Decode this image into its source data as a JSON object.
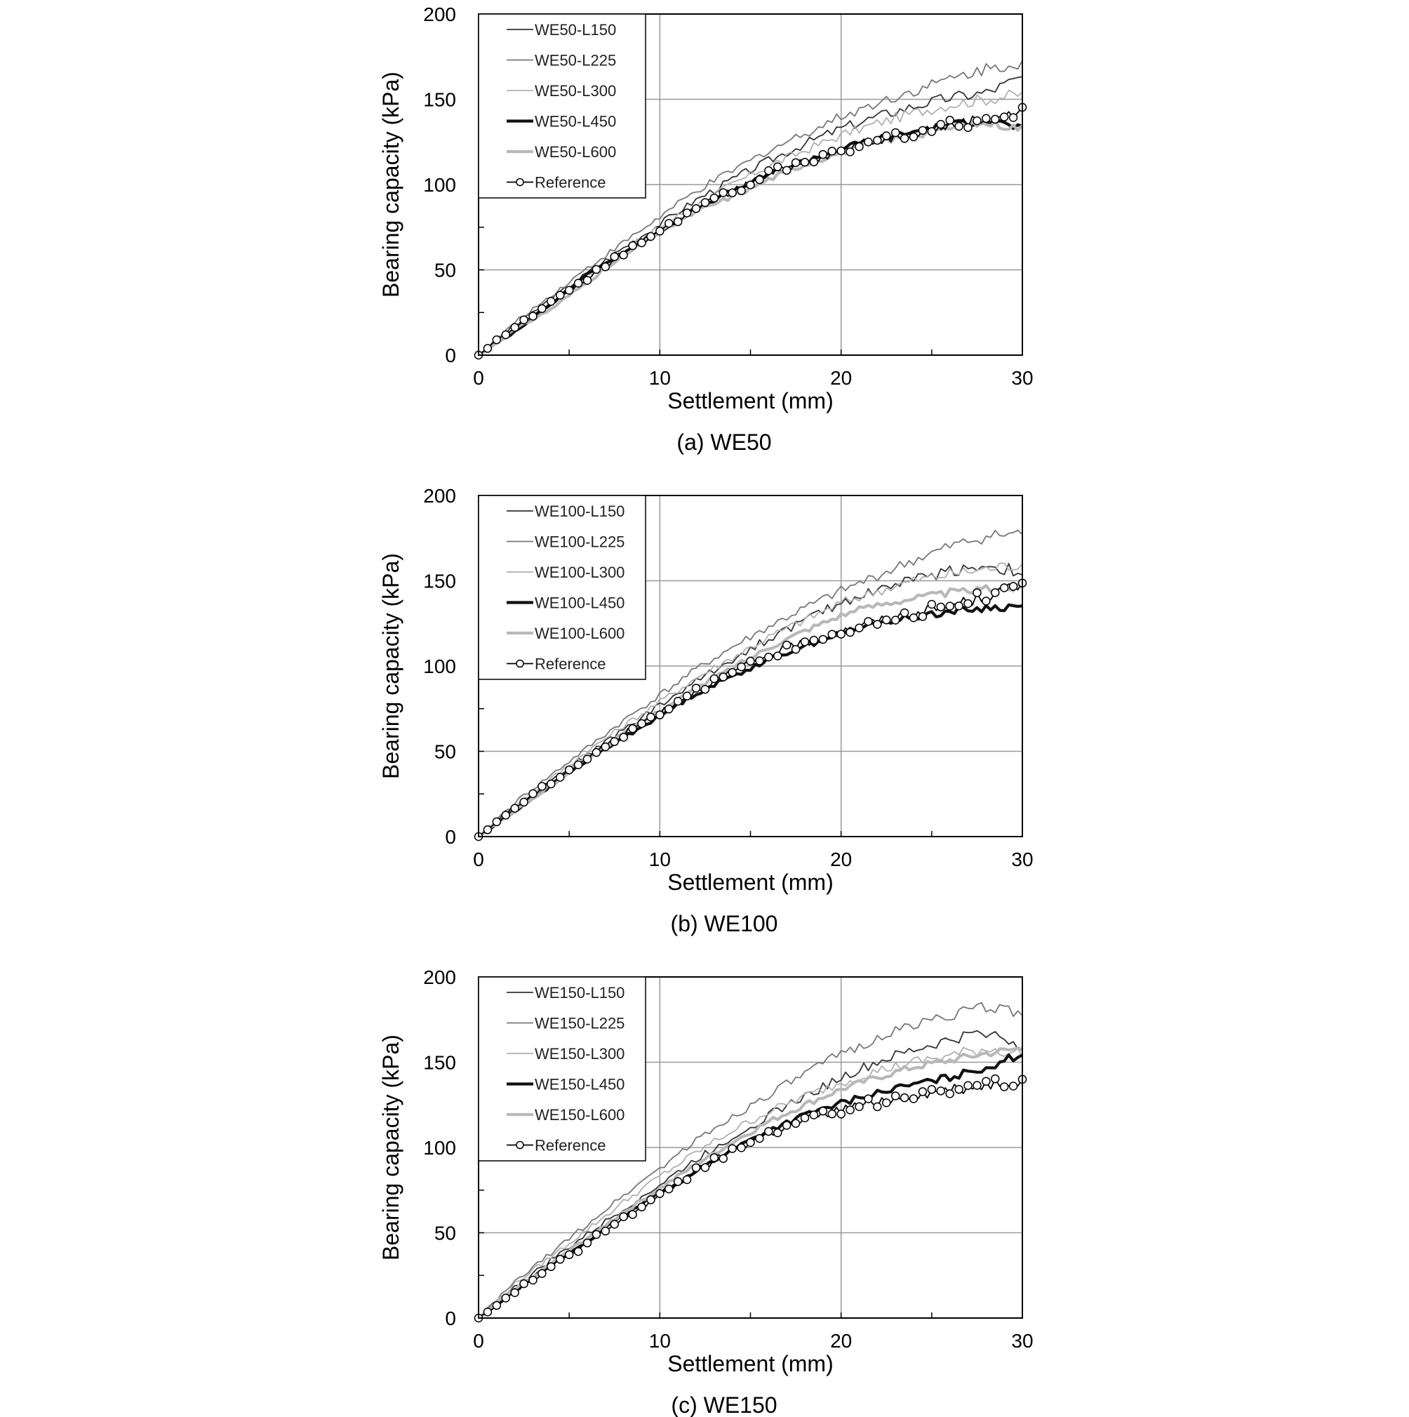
{
  "figure": {
    "panels": [
      {
        "caption": "(a)  WE50"
      },
      {
        "caption": "(b)  WE100"
      },
      {
        "caption": "(c)  WE150"
      }
    ]
  },
  "chart_data": [
    {
      "type": "line",
      "caption": "(a)  WE50",
      "xlabel": "Settlement (mm)",
      "ylabel": "Bearing capacity (kPa)",
      "xlim": [
        0,
        30
      ],
      "ylim": [
        0,
        200
      ],
      "xticks": [
        0,
        10,
        20,
        30
      ],
      "yticks": [
        0,
        50,
        100,
        150,
        200
      ],
      "grid": true,
      "legend_position": "top-left",
      "series": [
        {
          "name": "WE50-L150",
          "style": "thin-dark",
          "color": "#333333",
          "x": [
            0,
            2,
            4,
            6,
            8,
            10,
            12,
            14,
            16,
            18,
            20,
            22,
            24,
            26,
            28,
            30
          ],
          "y": [
            0,
            17,
            33,
            48,
            63,
            77,
            91,
            103,
            114,
            124,
            133,
            140,
            146,
            151,
            154,
            163
          ]
        },
        {
          "name": "WE50-L225",
          "style": "thin-mid",
          "color": "#777777",
          "x": [
            0,
            2,
            4,
            6,
            8,
            10,
            12,
            14,
            16,
            18,
            20,
            22,
            24,
            26,
            28,
            30
          ],
          "y": [
            0,
            19,
            35,
            51,
            66,
            81,
            96,
            108,
            120,
            130,
            140,
            148,
            155,
            162,
            168,
            172
          ]
        },
        {
          "name": "WE50-L300",
          "style": "thin-light",
          "color": "#b0b0b0",
          "x": [
            0,
            2,
            4,
            6,
            8,
            10,
            12,
            14,
            16,
            18,
            20,
            22,
            24,
            26,
            28,
            30
          ],
          "y": [
            0,
            16,
            31,
            46,
            61,
            75,
            88,
            100,
            111,
            120,
            129,
            136,
            142,
            147,
            150,
            153
          ]
        },
        {
          "name": "WE50-L450",
          "style": "thick-dark",
          "color": "#111111",
          "x": [
            0,
            2,
            4,
            6,
            8,
            10,
            12,
            14,
            16,
            18,
            20,
            22,
            24,
            26,
            28,
            30
          ],
          "y": [
            0,
            14,
            30,
            47,
            60,
            73,
            86,
            96,
            106,
            114,
            121,
            127,
            131,
            135,
            138,
            133
          ]
        },
        {
          "name": "WE50-L600",
          "style": "thick-light",
          "color": "#b8b8b8",
          "x": [
            0,
            2,
            4,
            6,
            8,
            10,
            12,
            14,
            16,
            18,
            20,
            22,
            24,
            26,
            28,
            30
          ],
          "y": [
            0,
            15,
            27,
            43,
            58,
            72,
            84,
            93,
            103,
            112,
            119,
            125,
            129,
            133,
            136,
            133
          ]
        },
        {
          "name": "Reference",
          "style": "reference",
          "color": "#000000",
          "x": [
            0,
            2,
            4,
            6,
            8,
            10,
            12,
            14,
            16,
            18,
            20,
            22,
            24,
            26,
            28,
            30
          ],
          "y": [
            0,
            16,
            31,
            45,
            60,
            73,
            86,
            96,
            106,
            114,
            120,
            126,
            131,
            135,
            139,
            142
          ]
        }
      ]
    },
    {
      "type": "line",
      "caption": "(b)  WE100",
      "xlabel": "Settlement (mm)",
      "ylabel": "Bearing capacity (kPa)",
      "xlim": [
        0,
        30
      ],
      "ylim": [
        0,
        200
      ],
      "xticks": [
        0,
        10,
        20,
        30
      ],
      "yticks": [
        0,
        50,
        100,
        150,
        200
      ],
      "grid": true,
      "legend_position": "top-left",
      "series": [
        {
          "name": "WE100-L150",
          "style": "thin-dark",
          "color": "#333333",
          "x": [
            0,
            2,
            4,
            6,
            8,
            10,
            12,
            14,
            16,
            18,
            20,
            22,
            24,
            26,
            28,
            30
          ],
          "y": [
            0,
            17,
            33,
            48,
            63,
            77,
            91,
            104,
            116,
            127,
            137,
            145,
            151,
            156,
            159,
            155
          ]
        },
        {
          "name": "WE100-L225",
          "style": "thin-mid",
          "color": "#777777",
          "x": [
            0,
            2,
            4,
            6,
            8,
            10,
            12,
            14,
            16,
            18,
            20,
            22,
            24,
            26,
            28,
            30
          ],
          "y": [
            0,
            20,
            36,
            52,
            68,
            83,
            98,
            111,
            123,
            134,
            144,
            153,
            162,
            170,
            176,
            178
          ]
        },
        {
          "name": "WE100-L300",
          "style": "thin-light",
          "color": "#b0b0b0",
          "x": [
            0,
            2,
            4,
            6,
            8,
            10,
            12,
            14,
            16,
            18,
            20,
            22,
            24,
            26,
            28,
            30
          ],
          "y": [
            0,
            18,
            34,
            50,
            65,
            79,
            93,
            105,
            117,
            127,
            137,
            144,
            150,
            154,
            157,
            160
          ]
        },
        {
          "name": "WE100-L450",
          "style": "thick-dark",
          "color": "#111111",
          "x": [
            0,
            2,
            4,
            6,
            8,
            10,
            12,
            14,
            16,
            18,
            20,
            22,
            24,
            26,
            28,
            30
          ],
          "y": [
            0,
            15,
            30,
            45,
            58,
            71,
            84,
            94,
            104,
            112,
            119,
            125,
            129,
            132,
            134,
            135
          ]
        },
        {
          "name": "WE100-L600",
          "style": "thick-light",
          "color": "#b8b8b8",
          "x": [
            0,
            2,
            4,
            6,
            8,
            10,
            12,
            14,
            16,
            18,
            20,
            22,
            24,
            26,
            28,
            30
          ],
          "y": [
            0,
            15,
            30,
            46,
            60,
            74,
            87,
            99,
            111,
            121,
            130,
            136,
            140,
            143,
            145,
            146
          ]
        },
        {
          "name": "Reference",
          "style": "reference",
          "color": "#000000",
          "x": [
            0,
            2,
            4,
            6,
            8,
            10,
            12,
            14,
            16,
            18,
            20,
            22,
            24,
            26,
            28,
            30
          ],
          "y": [
            0,
            17,
            32,
            46,
            60,
            73,
            86,
            96,
            106,
            114,
            120,
            126,
            131,
            135,
            141,
            147
          ]
        }
      ]
    },
    {
      "type": "line",
      "caption": "(c)  WE150",
      "xlabel": "Settlement (mm)",
      "ylabel": "Bearing capacity (kPa)",
      "xlim": [
        0,
        30
      ],
      "ylim": [
        0,
        200
      ],
      "xticks": [
        0,
        10,
        20,
        30
      ],
      "yticks": [
        0,
        50,
        100,
        150,
        200
      ],
      "grid": true,
      "legend_position": "top-left",
      "series": [
        {
          "name": "WE150-L150",
          "style": "thin-dark",
          "color": "#333333",
          "x": [
            0,
            2,
            4,
            6,
            8,
            10,
            12,
            14,
            16,
            18,
            20,
            22,
            24,
            26,
            28,
            30
          ],
          "y": [
            0,
            18,
            34,
            49,
            64,
            78,
            93,
            106,
            119,
            130,
            141,
            150,
            157,
            163,
            168,
            160
          ]
        },
        {
          "name": "WE150-L225",
          "style": "thin-mid",
          "color": "#777777",
          "x": [
            0,
            2,
            4,
            6,
            8,
            10,
            12,
            14,
            16,
            18,
            20,
            22,
            24,
            26,
            28,
            30
          ],
          "y": [
            0,
            21,
            38,
            55,
            72,
            88,
            104,
            118,
            131,
            143,
            155,
            164,
            172,
            178,
            182,
            180
          ]
        },
        {
          "name": "WE150-L300",
          "style": "thin-light",
          "color": "#b0b0b0",
          "x": [
            0,
            2,
            4,
            6,
            8,
            10,
            12,
            14,
            16,
            18,
            20,
            22,
            24,
            26,
            28,
            30
          ],
          "y": [
            0,
            20,
            36,
            52,
            68,
            83,
            97,
            110,
            121,
            130,
            138,
            145,
            150,
            154,
            158,
            155
          ]
        },
        {
          "name": "WE150-L450",
          "style": "thick-dark",
          "color": "#111111",
          "x": [
            0,
            2,
            4,
            6,
            8,
            10,
            12,
            14,
            16,
            18,
            20,
            22,
            24,
            26,
            28,
            30
          ],
          "y": [
            0,
            16,
            31,
            45,
            60,
            73,
            86,
            99,
            110,
            119,
            126,
            132,
            137,
            141,
            147,
            155
          ]
        },
        {
          "name": "WE150-L600",
          "style": "thick-light",
          "color": "#b8b8b8",
          "x": [
            0,
            2,
            4,
            6,
            8,
            10,
            12,
            14,
            16,
            18,
            20,
            22,
            24,
            26,
            28,
            30
          ],
          "y": [
            0,
            17,
            32,
            47,
            62,
            76,
            90,
            103,
            115,
            125,
            134,
            141,
            147,
            151,
            155,
            158
          ]
        },
        {
          "name": "Reference",
          "style": "reference",
          "color": "#000000",
          "x": [
            0,
            2,
            4,
            6,
            8,
            10,
            12,
            14,
            16,
            18,
            20,
            22,
            24,
            26,
            28,
            30
          ],
          "y": [
            0,
            16,
            30,
            44,
            58,
            72,
            86,
            98,
            108,
            116,
            122,
            127,
            131,
            134,
            137,
            140
          ]
        }
      ]
    }
  ]
}
